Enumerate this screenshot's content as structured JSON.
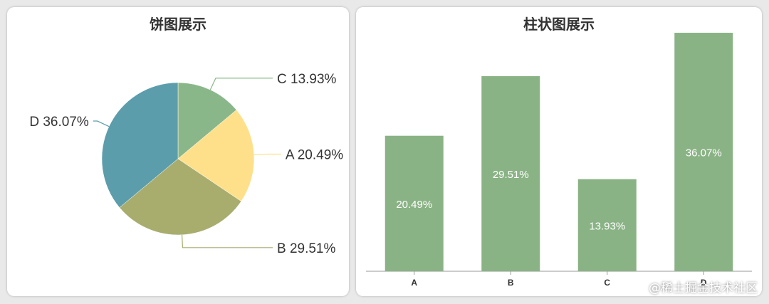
{
  "chart_data": [
    {
      "type": "pie",
      "title": "饼图展示",
      "slices": [
        {
          "name": "A",
          "value": 20.49,
          "label": "A 20.49%",
          "color": "#ffe08a"
        },
        {
          "name": "B",
          "value": 29.51,
          "label": "B 29.51%",
          "color": "#a8ad6e"
        },
        {
          "name": "C",
          "value": 13.93,
          "label": "C 13.93%",
          "color": "#8ab78a"
        },
        {
          "name": "D",
          "value": 36.07,
          "label": "D 36.07%",
          "color": "#5b9dab"
        }
      ],
      "start": "top, clockwise",
      "slice_order": [
        "C",
        "A",
        "B",
        "D"
      ]
    },
    {
      "type": "bar",
      "title": "柱状图展示",
      "categories": [
        "A",
        "B",
        "C",
        "D"
      ],
      "values": [
        20.49,
        29.51,
        13.93,
        36.07
      ],
      "value_labels": [
        "20.49%",
        "29.51%",
        "13.93%",
        "36.07%"
      ],
      "ylim": [
        0,
        36.07
      ],
      "bar_color": "#8ab385",
      "grid": false
    }
  ],
  "watermark": "@稀土掘金技术社区"
}
